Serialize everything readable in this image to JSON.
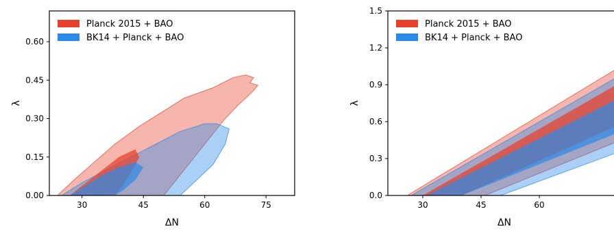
{
  "chart_data": [
    {
      "type": "contour",
      "xlabel": "ΔN",
      "ylabel": "λ",
      "xlim": [
        22,
        82
      ],
      "ylim": [
        0.0,
        0.72
      ],
      "xticks": [
        30,
        45,
        60,
        75
      ],
      "yticks": [
        0.0,
        0.15,
        0.3,
        0.45,
        0.6
      ],
      "ytick_labels": [
        "0.00",
        "0.15",
        "0.30",
        "0.45",
        "0.60"
      ],
      "legend": {
        "position": "top-left"
      },
      "series": [
        {
          "name": "Planck 2015 + BAO",
          "color": "#e8402a",
          "outer": [
            [
              24,
              0
            ],
            [
              28,
              0.06
            ],
            [
              33,
              0.13
            ],
            [
              38,
              0.2
            ],
            [
              44,
              0.27
            ],
            [
              50,
              0.33
            ],
            [
              55,
              0.38
            ],
            [
              62,
              0.42
            ],
            [
              67,
              0.46
            ],
            [
              70,
              0.47
            ],
            [
              72,
              0.46
            ],
            [
              71,
              0.44
            ],
            [
              73,
              0.43
            ],
            [
              72,
              0.41
            ],
            [
              70,
              0.38
            ],
            [
              68,
              0.35
            ],
            [
              65,
              0.3
            ],
            [
              62,
              0.24
            ],
            [
              58,
              0.16
            ],
            [
              54,
              0.08
            ],
            [
              50,
              0
            ],
            [
              24,
              0
            ]
          ],
          "inner": [
            [
              27,
              0
            ],
            [
              31,
              0.05
            ],
            [
              35,
              0.1
            ],
            [
              39,
              0.15
            ],
            [
              43,
              0.18
            ],
            [
              44,
              0.15
            ],
            [
              42,
              0.09
            ],
            [
              40,
              0.04
            ],
            [
              38,
              0
            ],
            [
              27,
              0
            ]
          ]
        },
        {
          "name": "BK14 + Planck + BAO",
          "color": "#2a8ae8",
          "outer": [
            [
              25,
              0
            ],
            [
              30,
              0.05
            ],
            [
              36,
              0.1
            ],
            [
              42,
              0.15
            ],
            [
              48,
              0.2
            ],
            [
              54,
              0.25
            ],
            [
              60,
              0.28
            ],
            [
              63,
              0.28
            ],
            [
              66,
              0.26
            ],
            [
              65,
              0.2
            ],
            [
              62,
              0.12
            ],
            [
              58,
              0.06
            ],
            [
              54,
              0
            ],
            [
              25,
              0
            ]
          ],
          "inner": [
            [
              27,
              0
            ],
            [
              31,
              0.04
            ],
            [
              35,
              0.08
            ],
            [
              39,
              0.11
            ],
            [
              43,
              0.13
            ],
            [
              45,
              0.11
            ],
            [
              43,
              0.06
            ],
            [
              40,
              0.02
            ],
            [
              38,
              0
            ],
            [
              27,
              0
            ]
          ]
        }
      ]
    },
    {
      "type": "contour",
      "xlabel": "ΔN",
      "ylabel": "λ",
      "xlim": [
        21,
        81
      ],
      "ylim": [
        0.0,
        1.5
      ],
      "xticks": [
        30,
        45,
        60
      ],
      "yticks": [
        0.0,
        0.3,
        0.6,
        0.9,
        1.2,
        1.5
      ],
      "ytick_labels": [
        "0.0",
        "0.3",
        "0.6",
        "0.9",
        "1.2",
        "1.5"
      ],
      "legend": {
        "position": "top-left"
      },
      "series": [
        {
          "name": "Planck 2015 + BAO",
          "color": "#e8402a",
          "outer": [
            [
              26,
              0
            ],
            [
              81,
              1.05
            ],
            [
              81,
              0.45
            ],
            [
              46,
              0
            ],
            [
              26,
              0
            ]
          ],
          "inner": [
            [
              30,
              0
            ],
            [
              81,
              0.92
            ],
            [
              81,
              0.58
            ],
            [
              40,
              0
            ],
            [
              30,
              0
            ]
          ]
        },
        {
          "name": "BK14 + Planck + BAO",
          "color": "#2a8ae8",
          "outer": [
            [
              27,
              0
            ],
            [
              81,
              0.98
            ],
            [
              81,
              0.36
            ],
            [
              50,
              0
            ],
            [
              27,
              0
            ]
          ],
          "inner": [
            [
              31,
              0
            ],
            [
              81,
              0.8
            ],
            [
              81,
              0.52
            ],
            [
              40,
              0
            ],
            [
              31,
              0
            ]
          ]
        }
      ]
    }
  ]
}
